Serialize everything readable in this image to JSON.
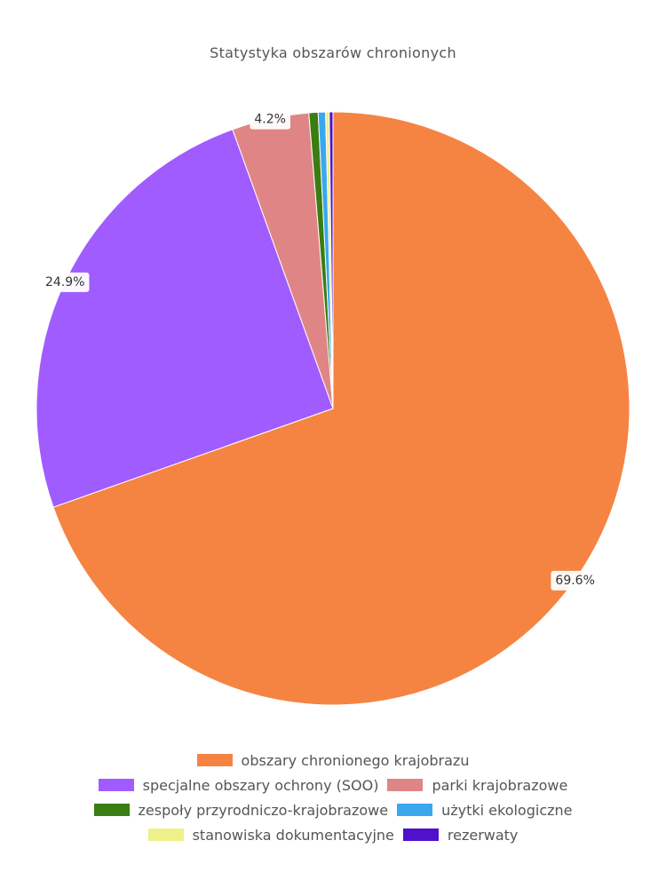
{
  "chart_data": {
    "type": "pie",
    "title": "Statystyka obszarów chronionych",
    "slices": [
      {
        "label": "obszary chronionego krajobrazu",
        "value": 69.6,
        "value_label": "69.6%",
        "color": "#f58442"
      },
      {
        "label": "specjalne obszary ochrony (SOO)",
        "value": 24.9,
        "value_label": "24.9%",
        "color": "#a05cff"
      },
      {
        "label": "parki krajobrazowe",
        "value": 4.2,
        "value_label": "4.2%",
        "color": "#e08585"
      },
      {
        "label": "zespoły przyrodniczo-krajobrazowe",
        "value": 0.5,
        "value_label": "",
        "color": "#3a7d12"
      },
      {
        "label": "użytki ekologiczne",
        "value": 0.4,
        "value_label": "",
        "color": "#3aa7ee"
      },
      {
        "label": "stanowiska dokumentacyjne",
        "value": 0.2,
        "value_label": "",
        "color": "#eef089"
      },
      {
        "label": "rezerwaty",
        "value": 0.2,
        "value_label": "",
        "color": "#5010cc"
      }
    ],
    "legend_position": "bottom",
    "legend_rows": [
      [
        0
      ],
      [
        1,
        2
      ],
      [
        3,
        4
      ],
      [
        5,
        6
      ]
    ]
  }
}
